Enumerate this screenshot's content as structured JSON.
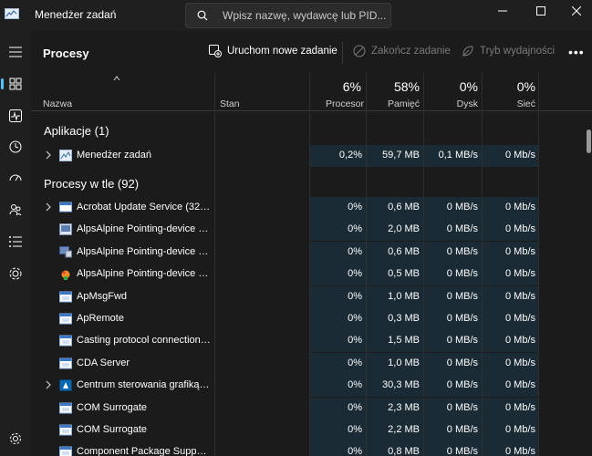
{
  "window": {
    "title": "Menedżer zadań",
    "search_placeholder": "Wpisz nazwę, wydawcę lub PID...",
    "controls": [
      "minimize-icon",
      "maximize-icon",
      "close-icon"
    ]
  },
  "nav": {
    "items": [
      "hamburger-icon",
      "processes-icon",
      "performance-icon",
      "app-history-icon",
      "startup-icon",
      "users-icon",
      "details-icon",
      "services-icon"
    ],
    "settings": "gear-icon"
  },
  "toolbar": {
    "page_title": "Procesy",
    "run_task": "Uruchom nowe zadanie",
    "end_task": "Zakończ zadanie",
    "efficiency": "Tryb wydajności",
    "more": "•••"
  },
  "columns": {
    "name": "Nazwa",
    "status": "Stan",
    "cpu": {
      "label": "Procesor",
      "pct": "6%"
    },
    "memory": {
      "label": "Pamięć",
      "pct": "58%"
    },
    "disk": {
      "label": "Dysk",
      "pct": "0%"
    },
    "network": {
      "label": "Sieć",
      "pct": "0%"
    }
  },
  "groups": {
    "apps": "Aplikacje (1)",
    "background": "Procesy w tle (92)"
  },
  "apps": [
    {
      "name": "Menedżer zadań",
      "cpu": "0,2%",
      "mem": "59,7 MB",
      "disk": "0,1 MB/s",
      "net": "0 Mb/s",
      "expandable": true,
      "icon": "task-manager-icon"
    }
  ],
  "background": [
    {
      "name": "Acrobat Update Service (32-bi...",
      "cpu": "0%",
      "mem": "0,6 MB",
      "disk": "0 MB/s",
      "net": "0 Mb/s",
      "expandable": true,
      "icon": "service-window-icon"
    },
    {
      "name": "AlpsAlpine Pointing-device Dri...",
      "cpu": "0%",
      "mem": "2,0 MB",
      "disk": "0 MB/s",
      "net": "0 Mb/s",
      "expandable": false,
      "icon": "alps-icon"
    },
    {
      "name": "AlpsAlpine Pointing-device Dri...",
      "cpu": "0%",
      "mem": "0,6 MB",
      "disk": "0 MB/s",
      "net": "0 Mb/s",
      "expandable": false,
      "icon": "alps-monitor-icon"
    },
    {
      "name": "AlpsAlpine Pointing-device Dri...",
      "cpu": "0%",
      "mem": "0,5 MB",
      "disk": "0 MB/s",
      "net": "0 Mb/s",
      "expandable": false,
      "icon": "alps-colorful-icon"
    },
    {
      "name": "ApMsgFwd",
      "cpu": "0%",
      "mem": "1,0 MB",
      "disk": "0 MB/s",
      "net": "0 Mb/s",
      "expandable": false,
      "icon": "app-window-icon"
    },
    {
      "name": "ApRemote",
      "cpu": "0%",
      "mem": "0,3 MB",
      "disk": "0 MB/s",
      "net": "0 Mb/s",
      "expandable": false,
      "icon": "app-window-icon"
    },
    {
      "name": "Casting protocol connection li...",
      "cpu": "0%",
      "mem": "1,5 MB",
      "disk": "0 MB/s",
      "net": "0 Mb/s",
      "expandable": false,
      "icon": "app-window-icon"
    },
    {
      "name": "CDA Server",
      "cpu": "0%",
      "mem": "1,0 MB",
      "disk": "0 MB/s",
      "net": "0 Mb/s",
      "expandable": false,
      "icon": "app-window-icon"
    },
    {
      "name": "Centrum sterowania grafiką In...",
      "cpu": "0%",
      "mem": "30,3 MB",
      "disk": "0 MB/s",
      "net": "0 Mb/s",
      "expandable": true,
      "icon": "intel-graphics-icon"
    },
    {
      "name": "COM Surrogate",
      "cpu": "0%",
      "mem": "2,3 MB",
      "disk": "0 MB/s",
      "net": "0 Mb/s",
      "expandable": false,
      "icon": "app-window-icon"
    },
    {
      "name": "COM Surrogate",
      "cpu": "0%",
      "mem": "2,2 MB",
      "disk": "0 MB/s",
      "net": "0 Mb/s",
      "expandable": false,
      "icon": "app-window-icon"
    },
    {
      "name": "Component Package Support ...",
      "cpu": "0%",
      "mem": "0,8 MB",
      "disk": "0 MB/s",
      "net": "0 Mb/s",
      "expandable": false,
      "icon": "app-window-icon"
    }
  ],
  "colors": {
    "accent": "#4cc2ff",
    "highlight": "#1a2b35"
  }
}
